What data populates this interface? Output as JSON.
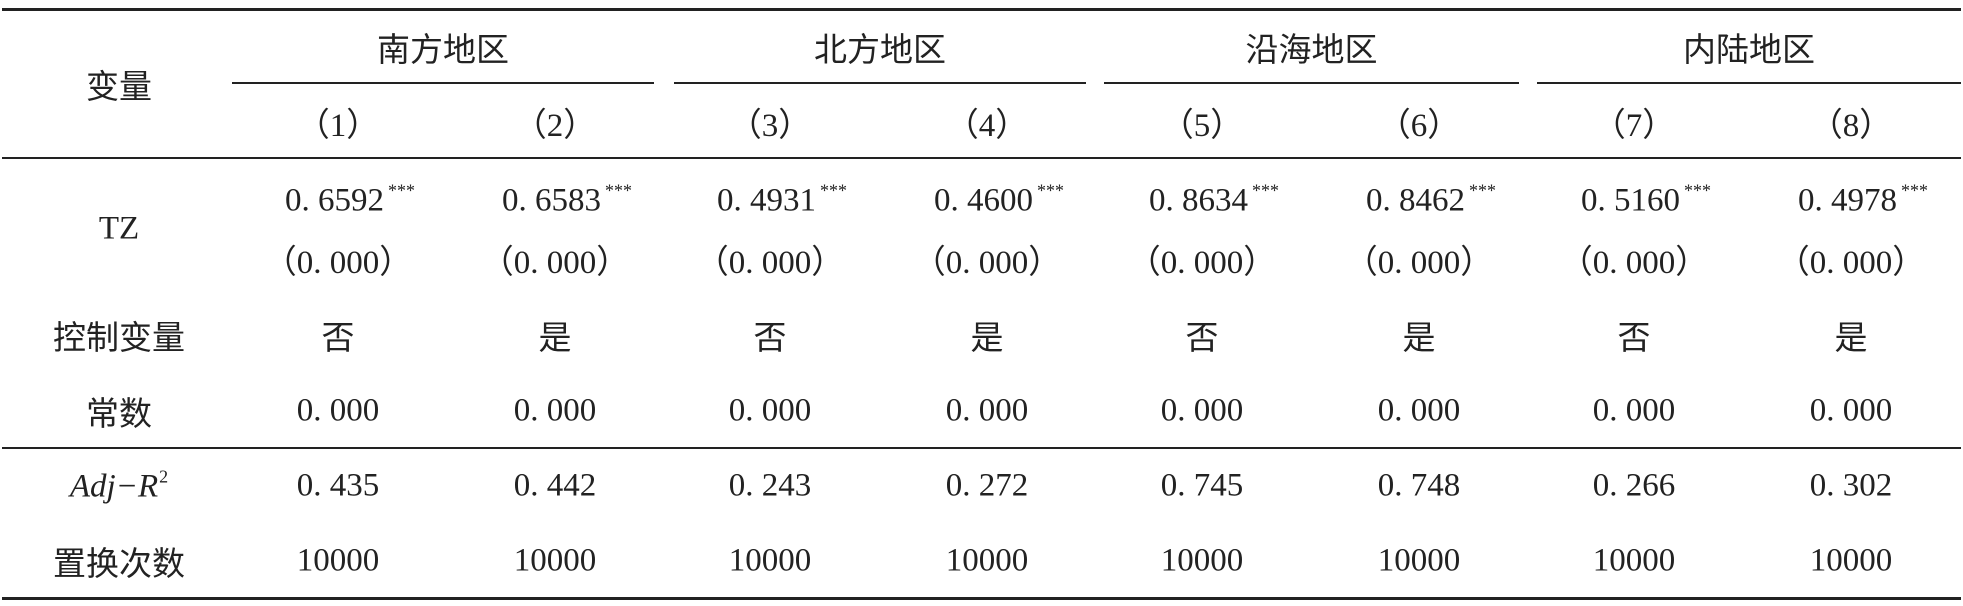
{
  "header": {
    "row_label": "变量",
    "groups": [
      "南方地区",
      "北方地区",
      "沿海地区",
      "内陆地区"
    ],
    "columns": [
      "（1）",
      "（2）",
      "（3）",
      "（4）",
      "（5）",
      "（6）",
      "（7）",
      "（8）"
    ]
  },
  "rows": [
    {
      "label": "TZ",
      "cells": [
        {
          "value": "0. 6592",
          "stars": "***",
          "p": "（0. 000）"
        },
        {
          "value": "0. 6583",
          "stars": "***",
          "p": "（0. 000）"
        },
        {
          "value": "0. 4931",
          "stars": "***",
          "p": "（0. 000）"
        },
        {
          "value": "0. 4600",
          "stars": "***",
          "p": "（0. 000）"
        },
        {
          "value": "0. 8634",
          "stars": "***",
          "p": "（0. 000）"
        },
        {
          "value": "0. 8462",
          "stars": "***",
          "p": "（0. 000）"
        },
        {
          "value": "0. 5160",
          "stars": "***",
          "p": "（0. 000）"
        },
        {
          "value": "0. 4978",
          "stars": "***",
          "p": "（0. 000）"
        }
      ]
    },
    {
      "label": "控制变量",
      "cells": [
        "否",
        "是",
        "否",
        "是",
        "否",
        "是",
        "否",
        "是"
      ]
    },
    {
      "label": "常数",
      "cells": [
        "0. 000",
        "0. 000",
        "0. 000",
        "0. 000",
        "0. 000",
        "0. 000",
        "0. 000",
        "0. 000"
      ]
    },
    {
      "label": {
        "text": "Adj−R",
        "sup": "2"
      },
      "cells": [
        "0. 435",
        "0. 442",
        "0. 243",
        "0. 272",
        "0. 745",
        "0. 748",
        "0. 266",
        "0. 302"
      ]
    },
    {
      "label": "置换次数",
      "cells": [
        "10000",
        "10000",
        "10000",
        "10000",
        "10000",
        "10000",
        "10000",
        "10000"
      ]
    }
  ]
}
